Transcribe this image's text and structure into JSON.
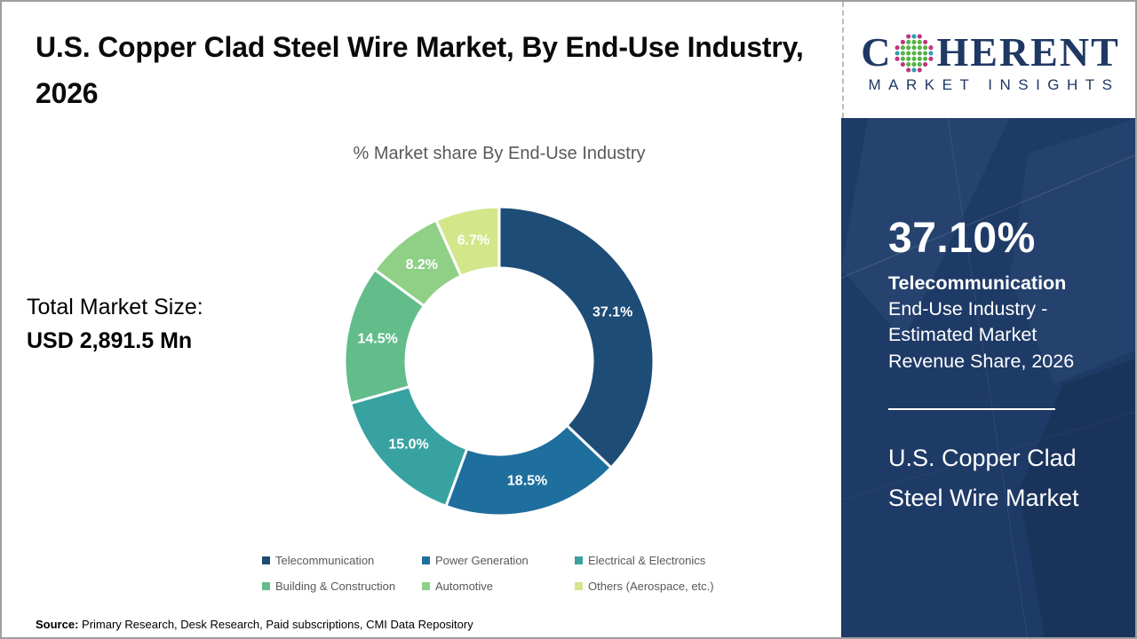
{
  "header": {
    "title": "U.S. Copper Clad Steel Wire Market, By End-Use Industry, 2026"
  },
  "logo": {
    "brand_c": "C",
    "brand_rest": "HERENT",
    "subtitle": "MARKET INSIGHTS",
    "globe_icon": "dotted-globe-icon",
    "brand_color": "#1f3864"
  },
  "chart_data": {
    "type": "pie",
    "donut": true,
    "title": "% Market share By End-Use Industry",
    "start_angle_deg": 0,
    "direction": "clockwise",
    "categories": [
      "Telecommunication",
      "Power Generation",
      "Electrical & Electronics",
      "Building & Construction",
      "Automotive",
      "Others (Aerospace, etc.)"
    ],
    "values": [
      37.1,
      18.5,
      15.0,
      14.5,
      8.2,
      6.7
    ],
    "labels": [
      "37.1%",
      "18.5%",
      "15.0%",
      "14.5%",
      "8.2%",
      "6.7%"
    ],
    "colors": [
      "#1d4c77",
      "#1e6f9e",
      "#38a2a1",
      "#62bd8a",
      "#8fd086",
      "#d3e78a"
    ],
    "legend_position": "bottom",
    "legend_text_color": "#595959"
  },
  "left_panel": {
    "total_label": "Total Market Size:",
    "total_value": "USD 2,891.5 Mn"
  },
  "side_panel": {
    "highlight_value": "37.10%",
    "highlight_bold": "Telecommunication",
    "highlight_rest": " End-Use Industry - Estimated Market Revenue Share, 2026",
    "market_name": "U.S. Copper Clad Steel Wire Market",
    "background": "#1e3a66"
  },
  "footer": {
    "source_label": "Source:",
    "source_text": " Primary Research, Desk Research, Paid subscriptions, CMI Data Repository"
  }
}
